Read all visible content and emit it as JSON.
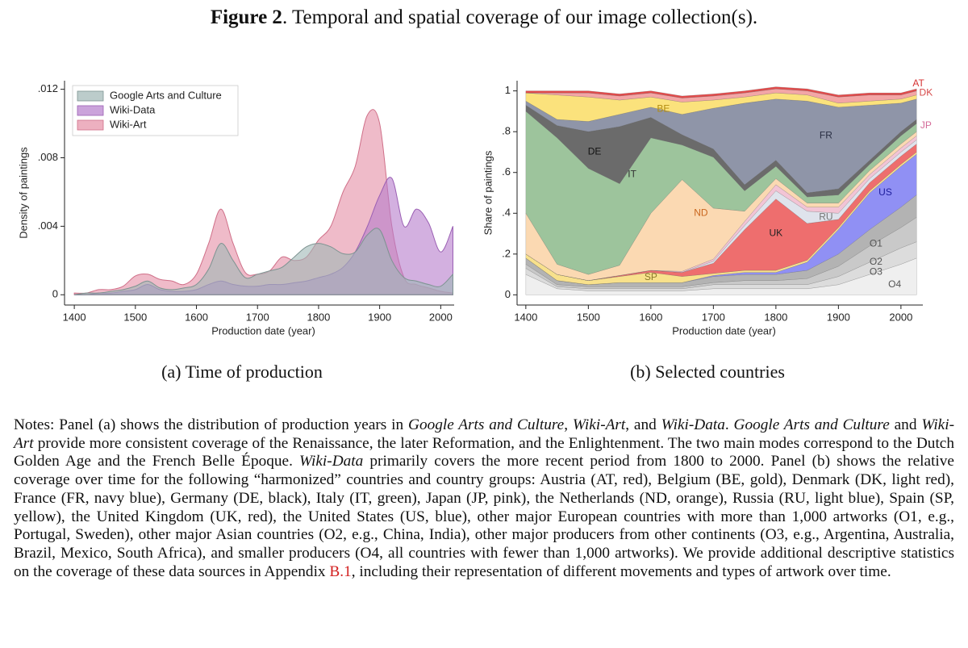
{
  "figure": {
    "label": "Figure 2",
    "text": ". Temporal and spatial coverage of our image collection(s)."
  },
  "chart_data": [
    {
      "type": "area",
      "caption": "(a) Time of production",
      "xlabel": "Production date (year)",
      "ylabel": "Density of paintings",
      "xlim": [
        1384,
        2022
      ],
      "ylim": [
        -0.0006,
        0.0125
      ],
      "xticks": [
        1400,
        1500,
        1600,
        1700,
        1800,
        1900,
        2000
      ],
      "yticks": [
        0,
        {
          "value": 0.004,
          "label": ".004"
        },
        {
          "value": 0.008,
          "label": ".008"
        },
        {
          "value": 0.012,
          "label": ".012"
        }
      ],
      "legend": "upper left",
      "x": [
        1400,
        1420,
        1440,
        1460,
        1480,
        1500,
        1520,
        1540,
        1560,
        1580,
        1600,
        1620,
        1640,
        1660,
        1680,
        1700,
        1720,
        1740,
        1760,
        1780,
        1800,
        1820,
        1840,
        1860,
        1880,
        1900,
        1920,
        1940,
        1960,
        1980,
        2000,
        2020
      ],
      "series": [
        {
          "name": "Google Arts and Culture",
          "color": "#9fb7b5",
          "stroke": "#7d9391",
          "values": [
            0,
            0.0001,
            0.0001,
            0.0002,
            0.0003,
            0.0005,
            0.0008,
            0.0004,
            0.0003,
            0.0004,
            0.0006,
            0.0015,
            0.003,
            0.002,
            0.001,
            0.0012,
            0.0014,
            0.0016,
            0.0022,
            0.0028,
            0.003,
            0.0028,
            0.0024,
            0.0025,
            0.0035,
            0.0038,
            0.002,
            0.001,
            0.0008,
            0.0006,
            0.0005,
            0.0012
          ]
        },
        {
          "name": "Wiki-Data",
          "color": "#b57ccc",
          "stroke": "#9a5fb3",
          "values": [
            0,
            0,
            0.0001,
            0.0001,
            0.0002,
            0.0003,
            0.0006,
            0.0003,
            0.0002,
            0.0002,
            0.0003,
            0.0006,
            0.0008,
            0.0006,
            0.0005,
            0.0005,
            0.0006,
            0.0006,
            0.0007,
            0.0008,
            0.001,
            0.0012,
            0.0016,
            0.0025,
            0.004,
            0.0058,
            0.0068,
            0.004,
            0.005,
            0.0042,
            0.0025,
            0.004
          ]
        },
        {
          "name": "Wiki-Art",
          "color": "#e58ea5",
          "stroke": "#cf6f88",
          "values": [
            0.0001,
            0.0001,
            0.0003,
            0.0003,
            0.0005,
            0.0011,
            0.0012,
            0.0009,
            0.0008,
            0.0006,
            0.0012,
            0.003,
            0.005,
            0.003,
            0.0013,
            0.0012,
            0.0014,
            0.0022,
            0.002,
            0.0022,
            0.0032,
            0.004,
            0.006,
            0.0075,
            0.0105,
            0.01,
            0.004,
            0.001,
            0.0006,
            0.0004,
            0.0002,
            0.0001
          ]
        }
      ]
    },
    {
      "type": "stacked_area",
      "caption": "(b) Selected countries",
      "xlabel": "Production date (year)",
      "ylabel": "Share of paintings",
      "xlim": [
        1386,
        2035
      ],
      "ylim": [
        -0.05,
        1.05
      ],
      "xticks": [
        1400,
        1500,
        1600,
        1700,
        1800,
        1900,
        2000
      ],
      "yticks": [
        0,
        {
          "value": 0.2,
          "label": ".2"
        },
        {
          "value": 0.4,
          "label": ".4"
        },
        {
          "value": 0.6,
          "label": ".6"
        },
        {
          "value": 0.8,
          "label": ".8"
        },
        1
      ],
      "x": [
        1400,
        1450,
        1500,
        1550,
        1600,
        1650,
        1700,
        1750,
        1800,
        1850,
        1900,
        1950,
        2000,
        2025
      ],
      "series": [
        {
          "name": "O4",
          "color": "#efefef",
          "label_color": "#555555",
          "values": [
            0.1,
            0.03,
            0.02,
            0.02,
            0.02,
            0.02,
            0.03,
            0.03,
            0.03,
            0.03,
            0.05,
            0.1,
            0.15,
            0.18
          ]
        },
        {
          "name": "O3",
          "color": "#dcdcdc",
          "label_color": "#555555",
          "values": [
            0.03,
            0.01,
            0.01,
            0.01,
            0.01,
            0.01,
            0.02,
            0.02,
            0.02,
            0.02,
            0.04,
            0.06,
            0.08,
            0.08
          ]
        },
        {
          "name": "O2",
          "color": "#c9c9c9",
          "label_color": "#555555",
          "values": [
            0.02,
            0.01,
            0.01,
            0.01,
            0.01,
            0.01,
            0.01,
            0.02,
            0.02,
            0.03,
            0.05,
            0.08,
            0.1,
            0.12
          ]
        },
        {
          "name": "O1",
          "color": "#b3b3b3",
          "label_color": "#555555",
          "values": [
            0.03,
            0.02,
            0.01,
            0.02,
            0.02,
            0.02,
            0.03,
            0.03,
            0.03,
            0.04,
            0.06,
            0.08,
            0.1,
            0.11
          ]
        },
        {
          "name": "US",
          "color": "#9090f4",
          "label_color": "#1c1c9c",
          "values": [
            0,
            0,
            0,
            0,
            0,
            0,
            0.005,
            0.01,
            0.01,
            0.04,
            0.12,
            0.18,
            0.2,
            0.2
          ]
        },
        {
          "name": "SP",
          "color": "#f8e18c",
          "label_color": "#8a7a2a",
          "values": [
            0.02,
            0.03,
            0.02,
            0.03,
            0.05,
            0.03,
            0.01,
            0.01,
            0.01,
            0.01,
            0.01,
            0.01,
            0.01,
            0.01
          ]
        },
        {
          "name": "UK",
          "color": "#ee6e6e",
          "label_color": "#222222",
          "values": [
            0,
            0,
            0,
            0.005,
            0.01,
            0.02,
            0.05,
            0.2,
            0.35,
            0.18,
            0.04,
            0.04,
            0.04,
            0.04
          ]
        },
        {
          "name": "RU",
          "color": "#dfe3ec",
          "label_color": "#777777",
          "values": [
            0,
            0,
            0,
            0,
            0,
            0,
            0.01,
            0.02,
            0.04,
            0.06,
            0.03,
            0.02,
            0.02,
            0.02
          ]
        },
        {
          "name": "JP",
          "color": "#f2c4d5",
          "label_color": "#d46a98",
          "values": [
            0,
            0,
            0,
            0,
            0,
            0.005,
            0.01,
            0.02,
            0.03,
            0.02,
            0.03,
            0.02,
            0.02,
            0.02
          ]
        },
        {
          "name": "ND",
          "color": "#fbd9b2",
          "label_color": "#c9661e",
          "values": [
            0.2,
            0.05,
            0.03,
            0.05,
            0.28,
            0.45,
            0.25,
            0.05,
            0.03,
            0.02,
            0.02,
            0.02,
            0.02,
            0.02
          ]
        },
        {
          "name": "IT",
          "color": "#9dc49c",
          "label_color": "#333333",
          "values": [
            0.5,
            0.62,
            0.52,
            0.4,
            0.37,
            0.17,
            0.25,
            0.1,
            0.06,
            0.03,
            0.04,
            0.03,
            0.04,
            0.04
          ]
        },
        {
          "name": "DE",
          "color": "#6b6b6b",
          "label_color": "#111111",
          "values": [
            0.03,
            0.06,
            0.18,
            0.28,
            0.1,
            0.05,
            0.04,
            0.03,
            0.03,
            0.02,
            0.03,
            0.02,
            0.02,
            0.02
          ]
        },
        {
          "name": "FR",
          "color": "#8f95a8",
          "label_color": "#2a2f44",
          "values": [
            0.02,
            0.03,
            0.05,
            0.06,
            0.05,
            0.1,
            0.2,
            0.4,
            0.3,
            0.45,
            0.4,
            0.27,
            0.14,
            0.1
          ]
        },
        {
          "name": "BE",
          "color": "#fbe27c",
          "label_color": "#b38b10",
          "values": [
            0.04,
            0.12,
            0.12,
            0.07,
            0.05,
            0.06,
            0.04,
            0.03,
            0.03,
            0.03,
            0.02,
            0.02,
            0.02,
            0.02
          ]
        },
        {
          "name": "DK",
          "color": "#f3a6a6",
          "label_color": "#d64848",
          "values": [
            0,
            0.01,
            0.02,
            0.02,
            0.02,
            0.02,
            0.02,
            0.02,
            0.02,
            0.02,
            0.03,
            0.03,
            0.02,
            0.02
          ]
        },
        {
          "name": "AT",
          "color": "#e34b4b",
          "label_color": "#d63232",
          "values": [
            0.01,
            0.01,
            0.01,
            0.01,
            0.01,
            0.01,
            0.01,
            0.01,
            0.01,
            0.01,
            0.01,
            0.01,
            0.01,
            0.01
          ]
        }
      ]
    }
  ],
  "notes": [
    {
      "text": "Notes: Panel (a) shows the distribution of production years in "
    },
    {
      "text": "Google Arts and Culture",
      "style": "italic"
    },
    {
      "text": ", "
    },
    {
      "text": "Wiki-Art",
      "style": "italic"
    },
    {
      "text": ", and "
    },
    {
      "text": "Wiki-Data",
      "style": "italic"
    },
    {
      "text": ". "
    },
    {
      "text": "Google Arts and Culture",
      "style": "italic"
    },
    {
      "text": " and "
    },
    {
      "text": "Wiki-Art",
      "style": "italic"
    },
    {
      "text": " provide more consistent coverage of the Renaissance, the later Reformation, and the Enlightenment. The two main modes correspond to the Dutch Golden Age and the French Belle Époque. "
    },
    {
      "text": "Wiki-Data",
      "style": "italic"
    },
    {
      "text": " primarily covers the more recent period from 1800 to 2000. Panel (b) shows the relative coverage over time for the following “harmonized” countries and country groups: Austria (AT, red), Belgium (BE, gold), Denmark (DK, light red), France (FR, navy blue), Germany (DE, black), Italy (IT, green), Japan (JP, pink), the Netherlands (ND, orange), Russia (RU, light blue), Spain (SP, yellow), the United Kingdom (UK, red), the United States (US, blue), other major European countries with more than 1,000 artworks (O1, e.g., Portugal, Sweden), other major Asian countries (O2, e.g., China, India), other major producers from other continents (O3, e.g., Argentina, Australia, Brazil, Mexico, South Africa), and smaller producers (O4, all countries with fewer than 1,000 artworks). We provide additional descriptive statistics on the coverage of these data sources in Appendix "
    },
    {
      "text": "B.1",
      "style": "link"
    },
    {
      "text": ", including their representation of different movements and types of artwork over time."
    }
  ]
}
